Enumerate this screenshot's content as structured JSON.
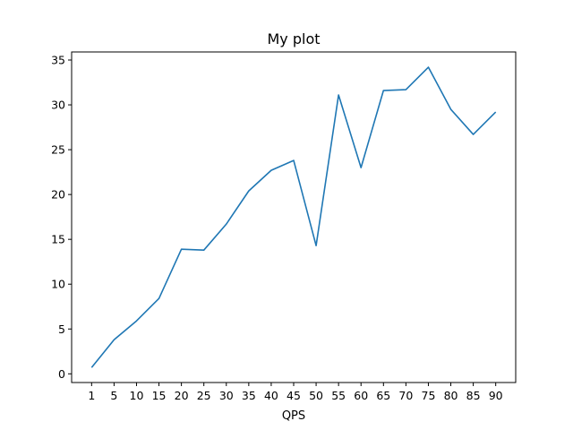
{
  "chart_data": {
    "type": "line",
    "title": "My plot",
    "xlabel": "QPS",
    "ylabel": "",
    "categories": [
      "1",
      "5",
      "10",
      "15",
      "20",
      "25",
      "30",
      "35",
      "40",
      "45",
      "50",
      "55",
      "60",
      "65",
      "70",
      "75",
      "80",
      "85",
      "90"
    ],
    "series": [
      {
        "values": [
          0.7,
          3.8,
          5.9,
          8.4,
          13.9,
          13.8,
          16.7,
          20.4,
          22.7,
          23.8,
          14.3,
          31.1,
          23.0,
          31.6,
          31.7,
          34.2,
          29.5,
          26.7,
          29.2
        ],
        "color": "#1f77b4"
      }
    ],
    "y_ticks": [
      0,
      5,
      10,
      15,
      20,
      25,
      30,
      35
    ],
    "ylim": [
      -0.97,
      35.9
    ],
    "grid": false,
    "legend": "none"
  }
}
